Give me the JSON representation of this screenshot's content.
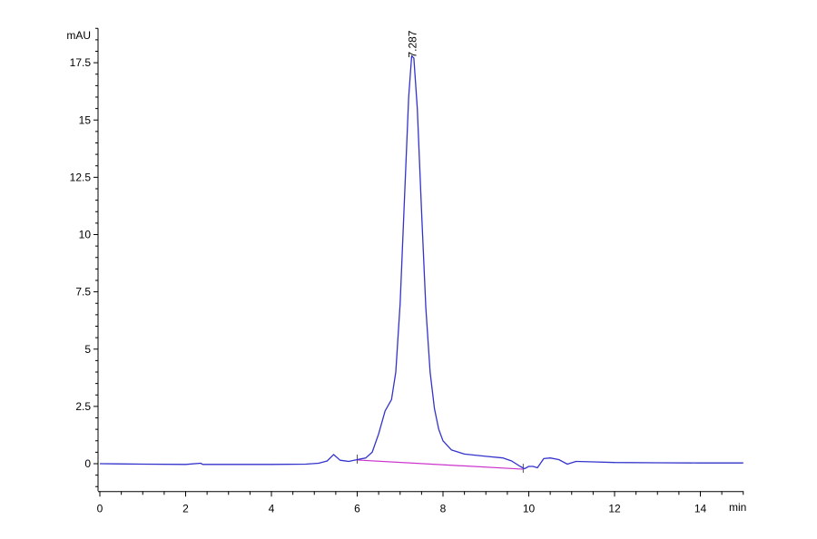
{
  "chart_data": {
    "type": "line",
    "title": "",
    "xlabel": "min",
    "ylabel": "mAU",
    "xlim": [
      0,
      15
    ],
    "ylim": [
      -1.2,
      19
    ],
    "x_ticks": [
      0,
      2,
      4,
      6,
      8,
      10,
      12,
      14
    ],
    "y_ticks": [
      0,
      2.5,
      5,
      7.5,
      10,
      12.5,
      15,
      17.5
    ],
    "y_tick_labels": [
      "0",
      "2.5",
      "5",
      "7.5",
      "10",
      "12.5",
      "15",
      "17.5"
    ],
    "grid": false,
    "series": [
      {
        "color": "#3333cc",
        "points": [
          [
            0,
            0.0
          ],
          [
            1,
            -0.02
          ],
          [
            2,
            -0.03
          ],
          [
            2.35,
            0.02
          ],
          [
            2.4,
            -0.03
          ],
          [
            3,
            -0.03
          ],
          [
            4,
            -0.03
          ],
          [
            4.8,
            -0.02
          ],
          [
            5.1,
            0.02
          ],
          [
            5.3,
            0.12
          ],
          [
            5.45,
            0.4
          ],
          [
            5.6,
            0.15
          ],
          [
            5.8,
            0.1
          ],
          [
            6.0,
            0.18
          ],
          [
            6.2,
            0.25
          ],
          [
            6.35,
            0.5
          ],
          [
            6.5,
            1.3
          ],
          [
            6.65,
            2.3
          ],
          [
            6.8,
            2.8
          ],
          [
            6.9,
            4.0
          ],
          [
            7.0,
            7.0
          ],
          [
            7.1,
            11.5
          ],
          [
            7.2,
            16.0
          ],
          [
            7.27,
            17.8
          ],
          [
            7.32,
            17.7
          ],
          [
            7.4,
            15.5
          ],
          [
            7.5,
            11.0
          ],
          [
            7.6,
            6.8
          ],
          [
            7.7,
            4.0
          ],
          [
            7.8,
            2.4
          ],
          [
            7.9,
            1.5
          ],
          [
            8.0,
            1.0
          ],
          [
            8.2,
            0.6
          ],
          [
            8.5,
            0.42
          ],
          [
            9.0,
            0.32
          ],
          [
            9.4,
            0.25
          ],
          [
            9.6,
            0.12
          ],
          [
            9.8,
            -0.12
          ],
          [
            9.9,
            -0.22
          ],
          [
            10.0,
            -0.12
          ],
          [
            10.1,
            -0.12
          ],
          [
            10.2,
            -0.18
          ],
          [
            10.35,
            0.22
          ],
          [
            10.5,
            0.25
          ],
          [
            10.7,
            0.18
          ],
          [
            10.9,
            -0.02
          ],
          [
            11.1,
            0.1
          ],
          [
            11.5,
            0.08
          ],
          [
            12,
            0.05
          ],
          [
            13,
            0.04
          ],
          [
            14,
            0.03
          ],
          [
            15,
            0.03
          ]
        ]
      }
    ],
    "baseline": {
      "color": "#cc33cc",
      "points": [
        [
          6.0,
          0.16
        ],
        [
          9.87,
          -0.24
        ]
      ]
    },
    "annotations": [
      {
        "text": "7.287",
        "x": 7.287,
        "y": 17.8
      }
    ]
  }
}
